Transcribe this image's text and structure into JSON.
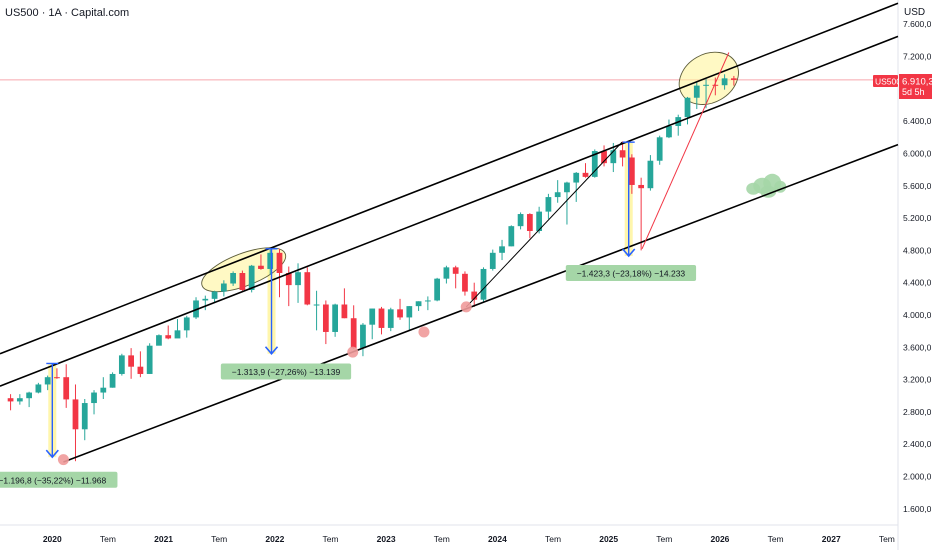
{
  "header": {
    "title": "US500 · 1A · Capital.com"
  },
  "currency": "USD",
  "price_tag": {
    "symbol": "US500",
    "price": "6.910,3",
    "countdown": "5d 5h"
  },
  "colors": {
    "up": "#26a69a",
    "down": "#f23645",
    "channel": "#000000",
    "trend_red": "#f23645",
    "box_fill": "#fff59d",
    "arrow": "#2962ff",
    "label_bg": "#a5d6a7",
    "dot": "#ef9a9a",
    "blob": "#a5d6a7",
    "current_line": "#f7a7ad"
  },
  "annotations": [
    {
      "text": "−1.196,8 (−35,22%) −11.968"
    },
    {
      "text": "−1.313,9 (−27,26%) −13.139"
    },
    {
      "text": "−1.423,3 (−23,18%) −14.233"
    }
  ],
  "chart_data": {
    "type": "candlestick",
    "title": "US500 · 1A · Capital.com",
    "interval": "1 month",
    "ylabel": "USD",
    "ylim": [
      1400,
      7900
    ],
    "y_ticks": [
      1600,
      2000,
      2400,
      2800,
      3200,
      3600,
      4000,
      4400,
      4800,
      5200,
      5600,
      6000,
      6400,
      7200,
      7600
    ],
    "y_tick_labels": [
      "1.600,0",
      "2.000,0",
      "2.400,0",
      "2.800,0",
      "3.200,0",
      "3.600,0",
      "4.000,0",
      "4.400,0",
      "4.800,0",
      "5.200,0",
      "5.600,0",
      "6.000,0",
      "6.400,0",
      "7.200,0",
      "7.600,0"
    ],
    "x_ticks": [
      {
        "t": 2020.0,
        "label": "2020",
        "bold": true
      },
      {
        "t": 2020.5,
        "label": "Tem",
        "bold": false
      },
      {
        "t": 2021.0,
        "label": "2021",
        "bold": true
      },
      {
        "t": 2021.5,
        "label": "Tem",
        "bold": false
      },
      {
        "t": 2022.0,
        "label": "2022",
        "bold": true
      },
      {
        "t": 2022.5,
        "label": "Tem",
        "bold": false
      },
      {
        "t": 2023.0,
        "label": "2023",
        "bold": true
      },
      {
        "t": 2023.5,
        "label": "Tem",
        "bold": false
      },
      {
        "t": 2024.0,
        "label": "2024",
        "bold": true
      },
      {
        "t": 2024.5,
        "label": "Tem",
        "bold": false
      },
      {
        "t": 2025.0,
        "label": "2025",
        "bold": true
      },
      {
        "t": 2025.5,
        "label": "Tem",
        "bold": false
      },
      {
        "t": 2026.0,
        "label": "2026",
        "bold": true
      },
      {
        "t": 2026.5,
        "label": "Tem",
        "bold": false
      },
      {
        "t": 2027.0,
        "label": "2027",
        "bold": true
      },
      {
        "t": 2027.5,
        "label": "Tem",
        "bold": false
      }
    ],
    "xlim": [
      2019.53,
      2027.6
    ],
    "last_price": 6910.3,
    "candles": [
      {
        "t": "2019-08",
        "o": 2970,
        "h": 3020,
        "l": 2820,
        "c": 2930
      },
      {
        "t": "2019-09",
        "o": 2930,
        "h": 3020,
        "l": 2890,
        "c": 2970
      },
      {
        "t": "2019-10",
        "o": 2970,
        "h": 3050,
        "l": 2860,
        "c": 3040
      },
      {
        "t": "2019-11",
        "o": 3040,
        "h": 3160,
        "l": 3030,
        "c": 3140
      },
      {
        "t": "2019-12",
        "o": 3140,
        "h": 3250,
        "l": 3070,
        "c": 3230
      },
      {
        "t": "2020-01",
        "o": 3230,
        "h": 3340,
        "l": 3210,
        "c": 3225
      },
      {
        "t": "2020-02",
        "o": 3230,
        "h": 3390,
        "l": 2850,
        "c": 2955
      },
      {
        "t": "2020-03",
        "o": 2955,
        "h": 3140,
        "l": 2190,
        "c": 2585
      },
      {
        "t": "2020-04",
        "o": 2585,
        "h": 2960,
        "l": 2450,
        "c": 2910
      },
      {
        "t": "2020-05",
        "o": 2910,
        "h": 3070,
        "l": 2770,
        "c": 3040
      },
      {
        "t": "2020-06",
        "o": 3040,
        "h": 3230,
        "l": 2960,
        "c": 3100
      },
      {
        "t": "2020-07",
        "o": 3100,
        "h": 3290,
        "l": 3100,
        "c": 3270
      },
      {
        "t": "2020-08",
        "o": 3270,
        "h": 3520,
        "l": 3250,
        "c": 3500
      },
      {
        "t": "2020-09",
        "o": 3500,
        "h": 3590,
        "l": 3210,
        "c": 3360
      },
      {
        "t": "2020-10",
        "o": 3360,
        "h": 3550,
        "l": 3230,
        "c": 3270
      },
      {
        "t": "2020-11",
        "o": 3270,
        "h": 3650,
        "l": 3270,
        "c": 3620
      },
      {
        "t": "2020-12",
        "o": 3620,
        "h": 3760,
        "l": 3630,
        "c": 3750
      },
      {
        "t": "2021-01",
        "o": 3750,
        "h": 3870,
        "l": 3700,
        "c": 3710
      },
      {
        "t": "2021-02",
        "o": 3710,
        "h": 3950,
        "l": 3720,
        "c": 3810
      },
      {
        "t": "2021-03",
        "o": 3810,
        "h": 3990,
        "l": 3720,
        "c": 3970
      },
      {
        "t": "2021-04",
        "o": 3970,
        "h": 4220,
        "l": 3950,
        "c": 4180
      },
      {
        "t": "2021-05",
        "o": 4180,
        "h": 4240,
        "l": 4060,
        "c": 4200
      },
      {
        "t": "2021-06",
        "o": 4200,
        "h": 4300,
        "l": 4160,
        "c": 4290
      },
      {
        "t": "2021-07",
        "o": 4290,
        "h": 4430,
        "l": 4230,
        "c": 4390
      },
      {
        "t": "2021-08",
        "o": 4390,
        "h": 4540,
        "l": 4360,
        "c": 4520
      },
      {
        "t": "2021-09",
        "o": 4520,
        "h": 4550,
        "l": 4300,
        "c": 4310
      },
      {
        "t": "2021-10",
        "o": 4310,
        "h": 4620,
        "l": 4280,
        "c": 4610
      },
      {
        "t": "2021-11",
        "o": 4610,
        "h": 4750,
        "l": 4560,
        "c": 4570
      },
      {
        "t": "2021-12",
        "o": 4570,
        "h": 4810,
        "l": 4500,
        "c": 4770
      },
      {
        "t": "2022-01",
        "o": 4770,
        "h": 4820,
        "l": 4220,
        "c": 4520
      },
      {
        "t": "2022-02",
        "o": 4520,
        "h": 4600,
        "l": 4110,
        "c": 4370
      },
      {
        "t": "2022-03",
        "o": 4370,
        "h": 4640,
        "l": 4150,
        "c": 4530
      },
      {
        "t": "2022-04",
        "o": 4530,
        "h": 4590,
        "l": 4120,
        "c": 4130
      },
      {
        "t": "2022-05",
        "o": 4130,
        "h": 4300,
        "l": 3810,
        "c": 4130
      },
      {
        "t": "2022-06",
        "o": 4130,
        "h": 4180,
        "l": 3640,
        "c": 3790
      },
      {
        "t": "2022-07",
        "o": 3790,
        "h": 4140,
        "l": 3730,
        "c": 4130
      },
      {
        "t": "2022-08",
        "o": 4130,
        "h": 4330,
        "l": 3960,
        "c": 3960
      },
      {
        "t": "2022-09",
        "o": 3960,
        "h": 4120,
        "l": 3580,
        "c": 3590
      },
      {
        "t": "2022-10",
        "o": 3590,
        "h": 3900,
        "l": 3490,
        "c": 3880
      },
      {
        "t": "2022-11",
        "o": 3880,
        "h": 4080,
        "l": 3700,
        "c": 4080
      },
      {
        "t": "2022-12",
        "o": 4080,
        "h": 4100,
        "l": 3760,
        "c": 3840
      },
      {
        "t": "2023-01",
        "o": 3840,
        "h": 4090,
        "l": 3800,
        "c": 4070
      },
      {
        "t": "2023-02",
        "o": 4070,
        "h": 4200,
        "l": 3940,
        "c": 3970
      },
      {
        "t": "2023-03",
        "o": 3970,
        "h": 4110,
        "l": 3810,
        "c": 4110
      },
      {
        "t": "2023-04",
        "o": 4110,
        "h": 4170,
        "l": 4050,
        "c": 4170
      },
      {
        "t": "2023-05",
        "o": 4170,
        "h": 4230,
        "l": 4060,
        "c": 4180
      },
      {
        "t": "2023-06",
        "o": 4180,
        "h": 4460,
        "l": 4170,
        "c": 4450
      },
      {
        "t": "2023-07",
        "o": 4450,
        "h": 4610,
        "l": 4390,
        "c": 4590
      },
      {
        "t": "2023-08",
        "o": 4590,
        "h": 4610,
        "l": 4330,
        "c": 4510
      },
      {
        "t": "2023-09",
        "o": 4510,
        "h": 4540,
        "l": 4240,
        "c": 4290
      },
      {
        "t": "2023-10",
        "o": 4290,
        "h": 4400,
        "l": 4100,
        "c": 4190
      },
      {
        "t": "2023-11",
        "o": 4190,
        "h": 4590,
        "l": 4160,
        "c": 4570
      },
      {
        "t": "2023-12",
        "o": 4570,
        "h": 4810,
        "l": 4550,
        "c": 4770
      },
      {
        "t": "2024-01",
        "o": 4770,
        "h": 4930,
        "l": 4680,
        "c": 4850
      },
      {
        "t": "2024-02",
        "o": 4850,
        "h": 5110,
        "l": 4850,
        "c": 5100
      },
      {
        "t": "2024-03",
        "o": 5100,
        "h": 5270,
        "l": 5060,
        "c": 5250
      },
      {
        "t": "2024-04",
        "o": 5250,
        "h": 5260,
        "l": 4950,
        "c": 5040
      },
      {
        "t": "2024-05",
        "o": 5040,
        "h": 5340,
        "l": 5010,
        "c": 5280
      },
      {
        "t": "2024-06",
        "o": 5280,
        "h": 5500,
        "l": 5190,
        "c": 5460
      },
      {
        "t": "2024-07",
        "o": 5460,
        "h": 5670,
        "l": 5390,
        "c": 5520
      },
      {
        "t": "2024-08",
        "o": 5520,
        "h": 5650,
        "l": 5120,
        "c": 5640
      },
      {
        "t": "2024-09",
        "o": 5640,
        "h": 5770,
        "l": 5400,
        "c": 5760
      },
      {
        "t": "2024-10",
        "o": 5760,
        "h": 5880,
        "l": 5700,
        "c": 5710
      },
      {
        "t": "2024-11",
        "o": 5710,
        "h": 6050,
        "l": 5700,
        "c": 6030
      },
      {
        "t": "2024-12",
        "o": 6030,
        "h": 6100,
        "l": 5840,
        "c": 5880
      },
      {
        "t": "2025-01",
        "o": 5880,
        "h": 6130,
        "l": 5770,
        "c": 6040
      },
      {
        "t": "2025-02",
        "o": 6040,
        "h": 6150,
        "l": 5840,
        "c": 5950
      },
      {
        "t": "2025-03",
        "o": 5950,
        "h": 5990,
        "l": 5500,
        "c": 5610
      },
      {
        "t": "2025-04",
        "o": 5610,
        "h": 5700,
        "l": 4800,
        "c": 5570
      },
      {
        "t": "2025-05",
        "o": 5570,
        "h": 5980,
        "l": 5540,
        "c": 5910
      },
      {
        "t": "2025-06",
        "o": 5910,
        "h": 6220,
        "l": 5860,
        "c": 6200
      },
      {
        "t": "2025-07",
        "o": 6200,
        "h": 6420,
        "l": 6190,
        "c": 6340
      },
      {
        "t": "2025-08",
        "o": 6340,
        "h": 6480,
        "l": 6220,
        "c": 6450
      },
      {
        "t": "2025-09",
        "o": 6450,
        "h": 6700,
        "l": 6360,
        "c": 6690
      },
      {
        "t": "2025-10",
        "o": 6690,
        "h": 6890,
        "l": 6550,
        "c": 6840
      },
      {
        "t": "2025-11",
        "o": 6840,
        "h": 6920,
        "l": 6560,
        "c": 6850
      },
      {
        "t": "2025-12",
        "o": 6850,
        "h": 6940,
        "l": 6720,
        "c": 6845
      },
      {
        "t": "2026-01",
        "o": 6845,
        "h": 6980,
        "l": 6790,
        "c": 6930
      },
      {
        "t": "2026-02",
        "o": 6930,
        "h": 6960,
        "l": 6840,
        "c": 6910
      }
    ],
    "channel_lines": [
      {
        "t1": 2019.53,
        "p1": 3520,
        "t2": 2027.6,
        "p2": 7860
      },
      {
        "t1": 2019.53,
        "p1": 3120,
        "t2": 2027.6,
        "p2": 7450
      },
      {
        "t1": 2020.1,
        "p1": 2180,
        "t2": 2027.6,
        "p2": 6110
      }
    ],
    "trend_lines": [
      {
        "color": "black",
        "t1": 2023.72,
        "p1": 4100,
        "t2": 2025.12,
        "p2": 6140
      },
      {
        "color": "red",
        "t1": 2025.3,
        "p1": 4820,
        "t2": 2026.08,
        "p2": 7250
      }
    ],
    "ellipses": [
      {
        "t": 2021.72,
        "p": 4560,
        "rt": 0.4,
        "rp": 200,
        "rot": -21
      },
      {
        "t": 2025.9,
        "p": 6930,
        "rt": 0.28,
        "rp": 300,
        "rot": -30
      }
    ],
    "drawdowns": [
      {
        "t": 2020.0,
        "from": 3400,
        "to": 2240,
        "label_t": 2020.0,
        "label_p": 1960
      },
      {
        "t": 2021.97,
        "from": 4820,
        "to": 3520,
        "label_t": 2022.1,
        "label_p": 3300
      },
      {
        "t": 2025.18,
        "from": 6140,
        "to": 4730,
        "label_t": 2025.2,
        "label_p": 4520
      }
    ],
    "markers": [
      {
        "t": 2020.1,
        "p": 2210
      },
      {
        "t": 2022.7,
        "p": 3540
      },
      {
        "t": 2023.34,
        "p": 3790
      },
      {
        "t": 2023.72,
        "p": 4100
      }
    ],
    "cloud": {
      "t": 2026.38,
      "p": 5600
    }
  }
}
